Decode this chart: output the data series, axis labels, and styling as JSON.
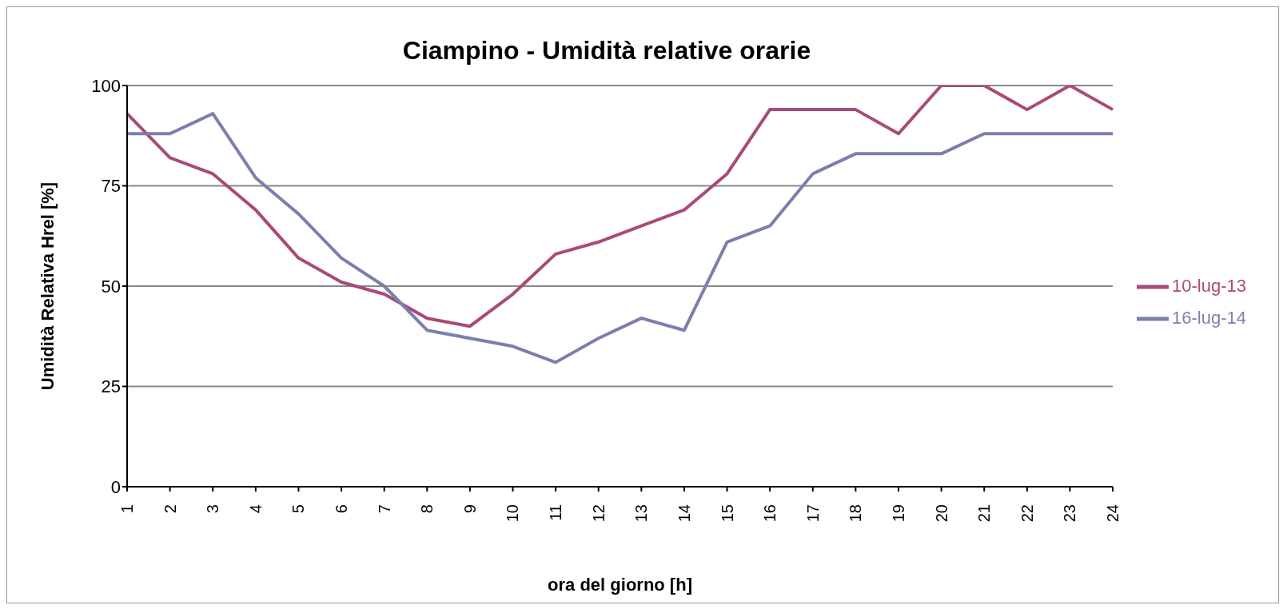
{
  "chart_data": {
    "type": "line",
    "title": "Ciampino - Umidità relative orarie",
    "xlabel": "ora del giorno [h]",
    "ylabel": "Umidità Relativa Hrel [%]",
    "categories": [
      "1",
      "2",
      "3",
      "4",
      "5",
      "6",
      "7",
      "8",
      "9",
      "10",
      "11",
      "12",
      "13",
      "14",
      "15",
      "16",
      "17",
      "18",
      "19",
      "20",
      "21",
      "22",
      "23",
      "24"
    ],
    "series": [
      {
        "name": "10-lug-13",
        "color": "#a94a78",
        "values": [
          93,
          82,
          78,
          69,
          57,
          51,
          48,
          42,
          40,
          48,
          58,
          61,
          65,
          69,
          78,
          94,
          94,
          94,
          88,
          100,
          100,
          94,
          100,
          94
        ]
      },
      {
        "name": "16-lug-14",
        "color": "#7a7fae",
        "values": [
          88,
          88,
          93,
          77,
          68,
          57,
          50,
          39,
          37,
          35,
          31,
          37,
          42,
          39,
          61,
          65,
          78,
          83,
          83,
          83,
          88,
          88,
          88,
          88
        ]
      }
    ],
    "ylim": [
      0,
      100
    ],
    "yticks": [
      0,
      25,
      50,
      75,
      100
    ],
    "grid": "y",
    "legend": "right",
    "marker": "none",
    "line_style": "solid"
  }
}
